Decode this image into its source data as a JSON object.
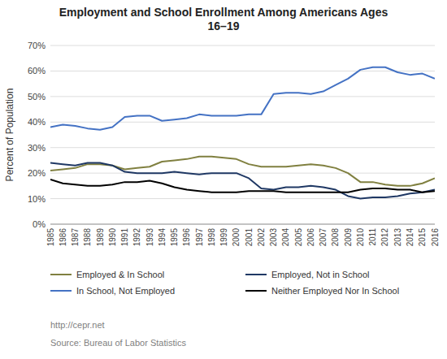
{
  "chart_data": {
    "type": "line",
    "title": "Employment and School Enrollment Among Americans Ages\n16–19",
    "ylabel": "Percent of Population",
    "annotations": [
      "http://cepr.net",
      "Source: Bureau of Labor Statistics"
    ],
    "x": [
      1985,
      1986,
      1987,
      1988,
      1989,
      1990,
      1991,
      1992,
      1993,
      1994,
      1995,
      1996,
      1997,
      1998,
      1999,
      2000,
      2001,
      2002,
      2003,
      2004,
      2005,
      2006,
      2007,
      2008,
      2009,
      2010,
      2011,
      2012,
      2013,
      2014,
      2015,
      2016
    ],
    "xlim": [
      1985,
      2016
    ],
    "xticks": [
      1985,
      1986,
      1987,
      1988,
      1989,
      1990,
      1991,
      1992,
      1993,
      1994,
      1995,
      1996,
      1997,
      1998,
      1999,
      2000,
      2001,
      2002,
      2003,
      2004,
      2005,
      2006,
      2007,
      2008,
      2009,
      2010,
      2011,
      2012,
      2013,
      2014,
      2015,
      2016
    ],
    "ylim": [
      0,
      70
    ],
    "yticks": [
      {
        "value": 0,
        "label": "0%"
      },
      {
        "value": 10,
        "label": "10%"
      },
      {
        "value": 20,
        "label": "20%"
      },
      {
        "value": 30,
        "label": "30%"
      },
      {
        "value": 40,
        "label": "40%"
      },
      {
        "value": 50,
        "label": "50%"
      },
      {
        "value": 60,
        "label": "60%"
      },
      {
        "value": 70,
        "label": "70%"
      }
    ],
    "grid": true,
    "legend": "bottom",
    "series": [
      {
        "name": "Employed & In School",
        "color": "#808040",
        "values": [
          21.0,
          21.5,
          22.0,
          23.5,
          23.5,
          23.0,
          21.5,
          22.0,
          22.5,
          24.5,
          25.0,
          25.5,
          26.5,
          26.5,
          26.0,
          25.5,
          23.5,
          22.5,
          22.5,
          22.5,
          23.0,
          23.5,
          23.0,
          22.0,
          20.0,
          16.5,
          16.5,
          15.5,
          15.0,
          15.0,
          16.0,
          18.0
        ]
      },
      {
        "name": "Employed, Not in School",
        "color": "#1f3864",
        "values": [
          24.0,
          23.5,
          23.0,
          24.0,
          24.0,
          23.0,
          20.5,
          20.0,
          20.0,
          20.0,
          20.5,
          20.0,
          19.5,
          20.0,
          20.0,
          20.0,
          18.0,
          14.0,
          13.5,
          14.5,
          14.5,
          15.0,
          14.5,
          13.5,
          11.0,
          10.0,
          10.5,
          10.5,
          11.0,
          12.0,
          12.5,
          13.5
        ]
      },
      {
        "name": "In School, Not Employed",
        "color": "#4472c4",
        "values": [
          38.0,
          39.0,
          38.5,
          37.5,
          37.0,
          38.0,
          42.0,
          42.5,
          42.5,
          40.5,
          41.0,
          41.5,
          43.0,
          42.5,
          42.5,
          42.5,
          43.0,
          43.0,
          51.0,
          51.5,
          51.5,
          51.0,
          52.0,
          54.5,
          57.0,
          60.5,
          61.5,
          61.5,
          59.5,
          58.5,
          59.0,
          57.0
        ]
      },
      {
        "name": "Neither Employed Nor In School",
        "color": "#000000",
        "values": [
          17.5,
          16.0,
          15.5,
          15.0,
          15.0,
          15.5,
          16.5,
          16.5,
          17.0,
          16.0,
          14.5,
          13.5,
          13.0,
          12.5,
          12.5,
          12.5,
          13.0,
          13.0,
          13.0,
          12.5,
          12.5,
          12.5,
          12.5,
          12.5,
          12.5,
          13.5,
          14.0,
          14.0,
          13.5,
          13.5,
          12.5,
          13.0
        ]
      }
    ]
  }
}
